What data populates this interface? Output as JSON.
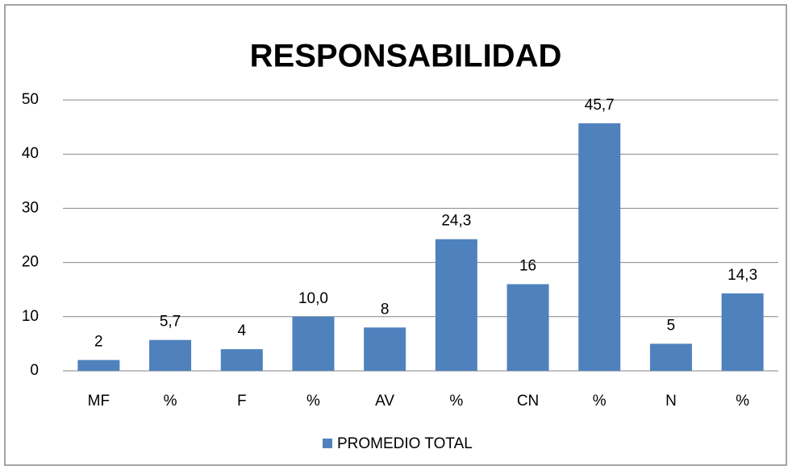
{
  "chart_data": {
    "type": "bar",
    "title": "RESPONSABILIDAD",
    "categories": [
      "MF",
      "%",
      "F",
      "%",
      "AV",
      "%",
      "CN",
      "%",
      "N",
      "%"
    ],
    "series": [
      {
        "name": "PROMEDIO TOTAL",
        "color": "#4f81bd",
        "values": [
          2,
          5.7,
          4,
          10.0,
          8,
          24.3,
          16,
          45.7,
          5,
          14.3
        ],
        "value_labels": [
          "2",
          "5,7",
          "4",
          "10,0",
          "8",
          "24,3",
          "16",
          "45,7",
          "5",
          "14,3"
        ]
      }
    ],
    "ylim": [
      0,
      50
    ],
    "yticks": [
      0,
      10,
      20,
      30,
      40,
      50
    ],
    "grid": true,
    "legend": "bottom"
  }
}
